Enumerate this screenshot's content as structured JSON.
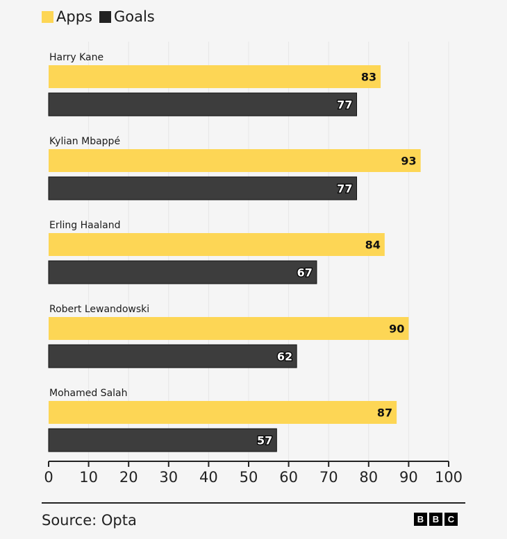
{
  "chart_data": {
    "type": "bar",
    "orientation": "horizontal",
    "title": "",
    "xlabel": "",
    "ylabel": "",
    "categories": [
      "Harry Kane",
      "Kylian Mbappé",
      "Erling Haaland",
      "Robert Lewandowski",
      "Mohamed Salah"
    ],
    "series": [
      {
        "name": "Apps",
        "color": "#fdd655",
        "values": [
          83,
          93,
          84,
          90,
          87
        ]
      },
      {
        "name": "Goals",
        "color": "#3d3d3d",
        "values": [
          77,
          77,
          67,
          62,
          57
        ]
      }
    ],
    "xlim": [
      0,
      100
    ],
    "xticks": [
      0,
      10,
      20,
      30,
      40,
      50,
      60,
      70,
      80,
      90,
      100
    ],
    "grid": true,
    "legend": "top-left",
    "data_labels": true
  },
  "legend": {
    "items": [
      {
        "label": "Apps",
        "color": "#fdd655"
      },
      {
        "label": "Goals",
        "color": "#222222"
      }
    ]
  },
  "footer": {
    "source": "Source: Opta",
    "logo_letters": [
      "B",
      "B",
      "C"
    ]
  }
}
